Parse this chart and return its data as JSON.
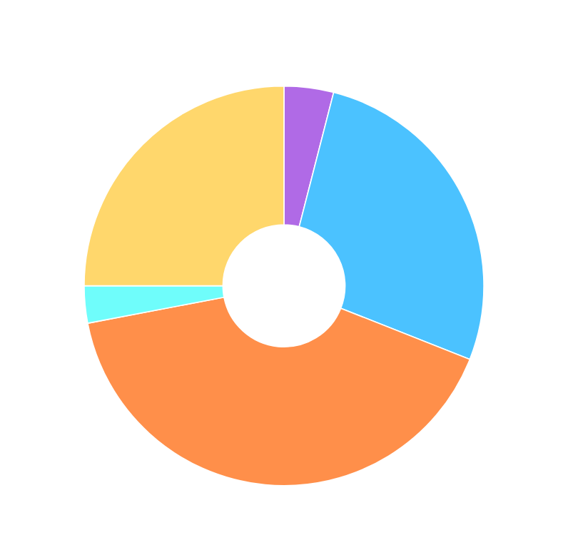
{
  "chart_data": {
    "type": "donut",
    "categories": [
      null,
      null,
      null,
      null,
      null
    ],
    "values": [
      4,
      27,
      41,
      3,
      25
    ],
    "colors": [
      "#b06ae6",
      "#4bc2ff",
      "#ff8f4a",
      "#6ffdfb",
      "#ffd76c"
    ]
  }
}
